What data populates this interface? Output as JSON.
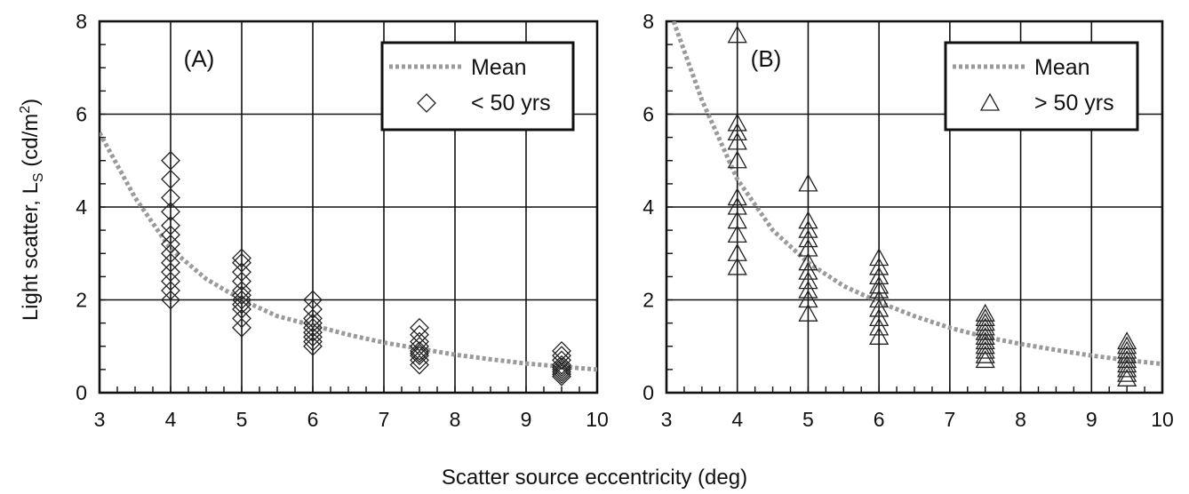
{
  "chart_data": [
    {
      "type": "scatter",
      "panel_label": "(A)",
      "xlim": [
        3,
        10
      ],
      "ylim": [
        0,
        8
      ],
      "x_ticks": [
        "3",
        "4",
        "5",
        "6",
        "7",
        "8",
        "9",
        "10"
      ],
      "y_ticks": [
        "0",
        "2",
        "4",
        "6",
        "8"
      ],
      "grid": true,
      "legend": {
        "placement": "top-right",
        "entries": [
          {
            "label": "Mean",
            "style": "dotted-line",
            "color": "#9a9a9a"
          },
          {
            "label": "< 50 yrs",
            "marker": "diamond",
            "color": "#222222"
          }
        ]
      },
      "series": [
        {
          "name": "Mean",
          "style": "dotted-line",
          "x": [
            3,
            3.5,
            4,
            4.5,
            5,
            5.5,
            6,
            6.5,
            7,
            7.5,
            8,
            8.5,
            9,
            9.5,
            10
          ],
          "y": [
            5.6,
            4.2,
            3.1,
            2.45,
            2.0,
            1.65,
            1.45,
            1.25,
            1.08,
            0.95,
            0.82,
            0.72,
            0.63,
            0.56,
            0.5
          ]
        },
        {
          "name": "< 50 yrs",
          "marker": "diamond",
          "points": [
            [
              4,
              5.0
            ],
            [
              4,
              4.6
            ],
            [
              4,
              4.2
            ],
            [
              4,
              3.9
            ],
            [
              4,
              3.6
            ],
            [
              4,
              3.4
            ],
            [
              4,
              3.2
            ],
            [
              4,
              3.0
            ],
            [
              4,
              2.8
            ],
            [
              4,
              2.6
            ],
            [
              4,
              2.4
            ],
            [
              4,
              2.2
            ],
            [
              4,
              2.0
            ],
            [
              5,
              2.9
            ],
            [
              5,
              2.8
            ],
            [
              5,
              2.6
            ],
            [
              5,
              2.4
            ],
            [
              5,
              2.2
            ],
            [
              5,
              2.1
            ],
            [
              5,
              2.0
            ],
            [
              5,
              1.9
            ],
            [
              5,
              1.8
            ],
            [
              5,
              1.6
            ],
            [
              5,
              1.4
            ],
            [
              6,
              2.0
            ],
            [
              6,
              1.8
            ],
            [
              6,
              1.6
            ],
            [
              6,
              1.5
            ],
            [
              6,
              1.4
            ],
            [
              6,
              1.3
            ],
            [
              6,
              1.2
            ],
            [
              6,
              1.1
            ],
            [
              6,
              1.0
            ],
            [
              7.5,
              1.4
            ],
            [
              7.5,
              1.25
            ],
            [
              7.5,
              1.1
            ],
            [
              7.5,
              1.0
            ],
            [
              7.5,
              0.9
            ],
            [
              7.5,
              0.85
            ],
            [
              7.5,
              0.8
            ],
            [
              7.5,
              0.7
            ],
            [
              7.5,
              0.6
            ],
            [
              9.5,
              0.9
            ],
            [
              9.5,
              0.8
            ],
            [
              9.5,
              0.7
            ],
            [
              9.5,
              0.6
            ],
            [
              9.5,
              0.55
            ],
            [
              9.5,
              0.5
            ],
            [
              9.5,
              0.45
            ],
            [
              9.5,
              0.4
            ],
            [
              9.5,
              0.35
            ]
          ]
        }
      ]
    },
    {
      "type": "scatter",
      "panel_label": "(B)",
      "xlim": [
        3,
        10
      ],
      "ylim": [
        0,
        8
      ],
      "x_ticks": [
        "3",
        "4",
        "5",
        "6",
        "7",
        "8",
        "9",
        "10"
      ],
      "y_ticks": [
        "0",
        "2",
        "4",
        "6",
        "8"
      ],
      "grid": true,
      "legend": {
        "placement": "top-right",
        "entries": [
          {
            "label": "Mean",
            "style": "dotted-line",
            "color": "#9a9a9a"
          },
          {
            "label": "> 50 yrs",
            "marker": "triangle",
            "color": "#222222"
          }
        ]
      },
      "series": [
        {
          "name": "Mean",
          "style": "dotted-line",
          "x": [
            3.1,
            3.5,
            4,
            4.5,
            5,
            5.5,
            6,
            6.5,
            7,
            7.5,
            8,
            8.5,
            9,
            9.5,
            10
          ],
          "y": [
            8.0,
            6.3,
            4.6,
            3.5,
            2.8,
            2.3,
            1.95,
            1.65,
            1.4,
            1.2,
            1.05,
            0.92,
            0.8,
            0.7,
            0.62
          ]
        },
        {
          "name": "> 50 yrs",
          "marker": "triangle",
          "points": [
            [
              4,
              7.7
            ],
            [
              4,
              5.8
            ],
            [
              4,
              5.6
            ],
            [
              4,
              5.4
            ],
            [
              4,
              5.0
            ],
            [
              4,
              4.2
            ],
            [
              4,
              4.0
            ],
            [
              4,
              3.7
            ],
            [
              4,
              3.4
            ],
            [
              4,
              3.0
            ],
            [
              4,
              2.7
            ],
            [
              5,
              4.5
            ],
            [
              5,
              3.7
            ],
            [
              5,
              3.5
            ],
            [
              5,
              3.3
            ],
            [
              5,
              3.1
            ],
            [
              5,
              2.8
            ],
            [
              5,
              2.6
            ],
            [
              5,
              2.4
            ],
            [
              5,
              2.2
            ],
            [
              5,
              2.0
            ],
            [
              5,
              1.7
            ],
            [
              6,
              2.9
            ],
            [
              6,
              2.7
            ],
            [
              6,
              2.5
            ],
            [
              6,
              2.3
            ],
            [
              6,
              2.2
            ],
            [
              6,
              2.0
            ],
            [
              6,
              1.8
            ],
            [
              6,
              1.6
            ],
            [
              6,
              1.4
            ],
            [
              6,
              1.2
            ],
            [
              7.5,
              1.7
            ],
            [
              7.5,
              1.6
            ],
            [
              7.5,
              1.5
            ],
            [
              7.5,
              1.4
            ],
            [
              7.5,
              1.3
            ],
            [
              7.5,
              1.2
            ],
            [
              7.5,
              1.1
            ],
            [
              7.5,
              1.0
            ],
            [
              7.5,
              0.9
            ],
            [
              7.5,
              0.8
            ],
            [
              7.5,
              0.7
            ],
            [
              9.5,
              1.1
            ],
            [
              9.5,
              1.0
            ],
            [
              9.5,
              0.9
            ],
            [
              9.5,
              0.8
            ],
            [
              9.5,
              0.7
            ],
            [
              9.5,
              0.6
            ],
            [
              9.5,
              0.5
            ],
            [
              9.5,
              0.4
            ],
            [
              9.5,
              0.3
            ]
          ]
        }
      ]
    }
  ],
  "ylabel": "Light scatter, L",
  "ylabel_subscript": "S",
  "ylabel_unit_prefix": " (cd/m",
  "ylabel_unit_sup": "2",
  "ylabel_unit_suffix": ")",
  "xlabel": "Scatter source eccentricity (deg)"
}
